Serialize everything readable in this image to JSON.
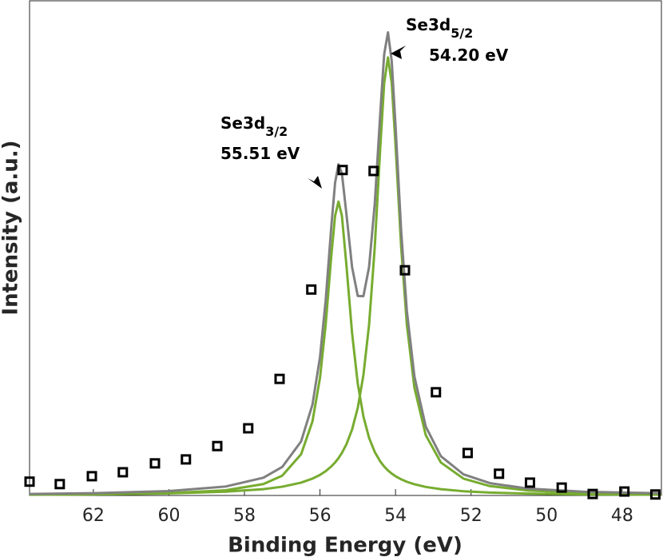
{
  "chart_data": {
    "type": "line",
    "xlabel": "Binding Energy (eV)",
    "ylabel": "Intensity (a.u.)",
    "xlim": [
      63.69,
      46.96
    ],
    "xticks": [
      62,
      60,
      58,
      56,
      54,
      52,
      50,
      48
    ],
    "ylim": [
      0,
      100
    ],
    "annotations": [
      {
        "text": "Se3d",
        "subscript": "5/2",
        "label": "54.20 eV"
      },
      {
        "text": "Se3d",
        "subscript": "3/2",
        "label": "55.51 eV"
      }
    ],
    "series": [
      {
        "type": "scatter",
        "color": "#000000",
        "x": [
          63.69,
          62.89,
          62.04,
          61.22,
          60.37,
          59.55,
          58.72,
          57.9,
          57.07,
          56.23,
          55.4,
          54.58,
          53.75,
          52.93,
          52.09,
          51.26,
          50.44,
          49.6,
          48.78,
          47.94,
          47.12
        ],
        "values": [
          2.8,
          2.3,
          3.9,
          4.7,
          6.5,
          7.3,
          10.0,
          13.6,
          23.6,
          41.7,
          65.9,
          65.7,
          45.6,
          20.9,
          8.6,
          4.4,
          2.6,
          1.6,
          0.3,
          0.8,
          0.2
        ]
      },
      {
        "type": "line",
        "color": "#808080",
        "x": [
          63.69,
          62,
          60,
          58.5,
          57.5,
          57,
          56.5,
          56.2,
          56,
          55.85,
          55.7,
          55.6,
          55.51,
          55.42,
          55.3,
          55.15,
          55,
          54.85,
          54.7,
          54.55,
          54.4,
          54.3,
          54.2,
          54.1,
          54,
          53.85,
          53.7,
          53.5,
          53.2,
          52.8,
          52.2,
          51.5,
          50.5,
          49,
          46.96
        ],
        "values": [
          0.31,
          0.46,
          0.89,
          1.81,
          3.59,
          5.77,
          10.95,
          18.37,
          27.97,
          39.46,
          54.44,
          63.32,
          67.06,
          65.24,
          57.0,
          46.23,
          40.4,
          40.35,
          46.27,
          59.04,
          77.8,
          89.34,
          93.77,
          87.91,
          74.86,
          53.51,
          37.38,
          24.1,
          13.96,
          7.96,
          4.27,
          2.49,
          1.4,
          0.74,
          0.44
        ]
      },
      {
        "type": "line",
        "color": "#77ac30",
        "x": [
          63.69,
          62,
          60,
          58.5,
          57.5,
          57,
          56.5,
          56.2,
          56,
          55.85,
          55.7,
          55.6,
          55.51,
          55.42,
          55.3,
          55.15,
          55,
          54.85,
          54.7,
          54.55,
          54.4,
          54.3,
          54.2,
          54.1,
          54,
          53.85,
          53.7,
          53.5,
          53.2,
          52.8,
          52.2,
          51.5,
          50.5,
          49,
          46.96
        ],
        "values": [
          0.15,
          0.23,
          0.47,
          1.05,
          2.31,
          4.0,
          8.35,
          14.96,
          23.8,
          34.54,
          48.55,
          56.63,
          59.5,
          56.63,
          46.64,
          32.87,
          22.66,
          15.98,
          11.66,
          8.8,
          6.84,
          5.86,
          5.07,
          4.43,
          3.9,
          3.27,
          2.77,
          2.27,
          1.73,
          1.27,
          0.86,
          0.59,
          0.38,
          0.22,
          0.14
        ]
      },
      {
        "type": "line",
        "color": "#77ac30",
        "x": [
          63.69,
          62,
          60,
          58.5,
          57.5,
          57,
          56.5,
          56.2,
          56,
          55.85,
          55.7,
          55.6,
          55.51,
          55.42,
          55.3,
          55.15,
          55,
          54.85,
          54.7,
          54.55,
          54.4,
          54.3,
          54.2,
          54.1,
          54,
          53.85,
          53.7,
          53.5,
          53.2,
          52.8,
          52.2,
          51.5,
          50.5,
          49,
          46.96
        ],
        "values": [
          0.16,
          0.23,
          0.42,
          0.76,
          1.28,
          1.77,
          2.6,
          3.41,
          4.17,
          4.92,
          5.89,
          6.69,
          7.56,
          8.61,
          10.36,
          13.36,
          17.74,
          24.37,
          34.61,
          50.24,
          70.96,
          83.48,
          88.7,
          83.48,
          70.96,
          50.24,
          34.61,
          21.83,
          12.23,
          6.69,
          3.41,
          1.9,
          1.02,
          0.52,
          0.3
        ]
      }
    ]
  }
}
